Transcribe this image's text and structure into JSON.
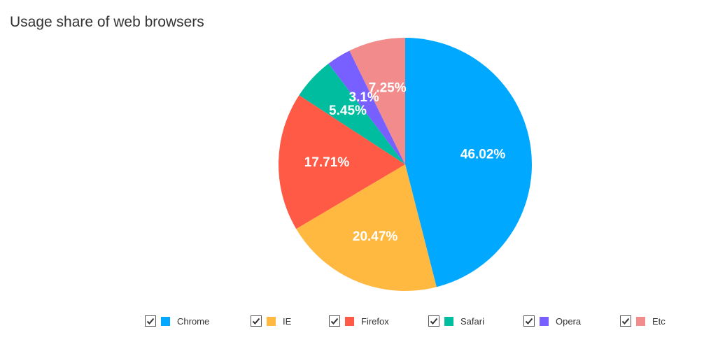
{
  "chart_data": {
    "type": "pie",
    "title": "Usage share of web browsers",
    "categories": [
      "Chrome",
      "IE",
      "Firefox",
      "Safari",
      "Opera",
      "Etc"
    ],
    "values": [
      46.02,
      20.47,
      17.71,
      5.45,
      3.1,
      7.25
    ],
    "labels": [
      "46.02%",
      "20.47%",
      "17.71%",
      "5.45%",
      "3.1%",
      "7.25%"
    ],
    "colors": [
      "#00a9ff",
      "#ffb840",
      "#ff5a46",
      "#00bd9f",
      "#785fff",
      "#f28b8c"
    ],
    "legend_position": "bottom",
    "legend_checked": [
      true,
      true,
      true,
      true,
      true,
      true
    ],
    "start_angle": "top, clockwise"
  }
}
